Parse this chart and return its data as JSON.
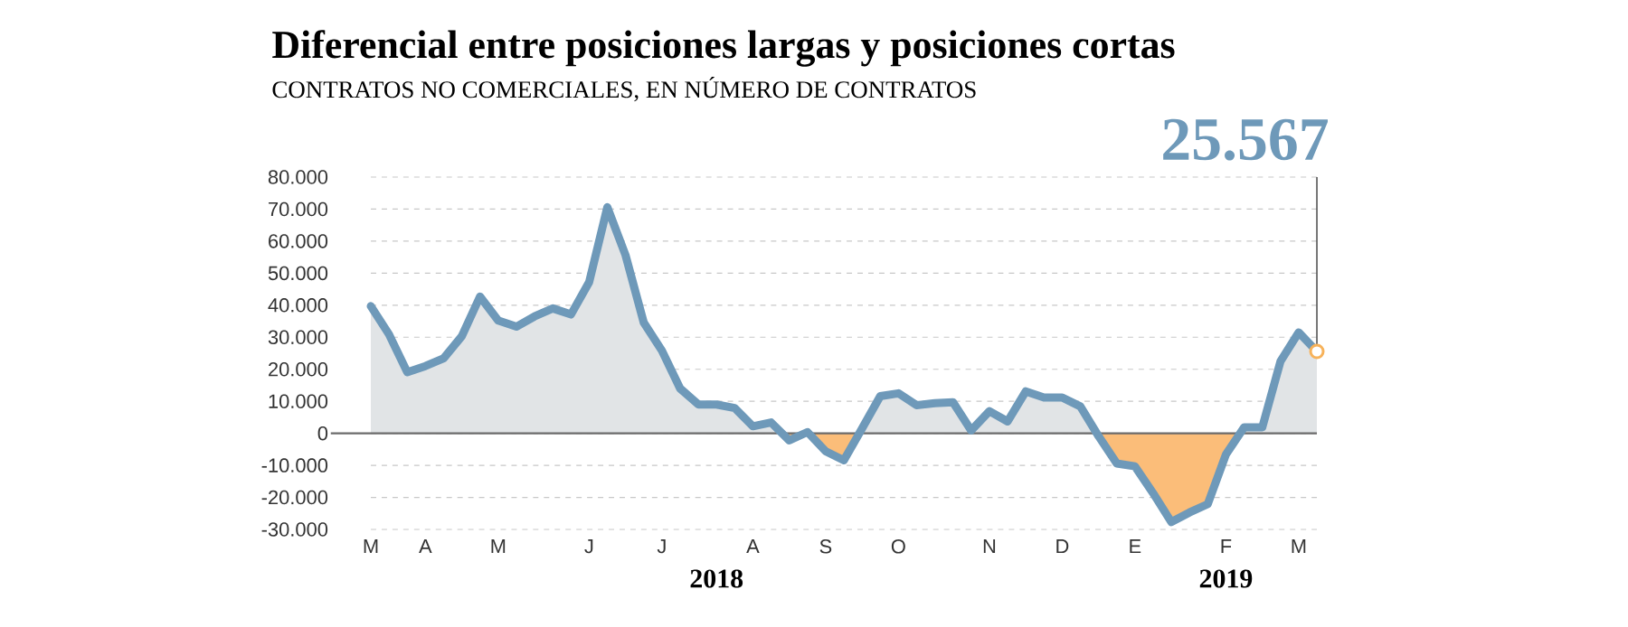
{
  "chart_data": {
    "type": "area",
    "title": "Diferencial entre posiciones largas y posiciones cortas",
    "subtitle": "CONTRATOS NO COMERCIALES, EN NÚMERO DE CONTRATOS",
    "categories": [
      "M",
      null,
      null,
      "A",
      null,
      null,
      null,
      "M",
      null,
      null,
      null,
      null,
      "J",
      null,
      null,
      null,
      "J",
      null,
      null,
      null,
      null,
      "A",
      null,
      null,
      null,
      "S",
      null,
      null,
      null,
      "O",
      null,
      null,
      null,
      null,
      "N",
      null,
      null,
      null,
      "D",
      null,
      null,
      null,
      "E",
      null,
      null,
      null,
      null,
      "F",
      null,
      null,
      null,
      "M",
      null
    ],
    "series": [
      {
        "color": "#6e99b9",
        "values": [
          39700,
          30900,
          19100,
          21000,
          23400,
          30300,
          42700,
          35200,
          33300,
          36500,
          39000,
          37100,
          47200,
          70600,
          55600,
          34600,
          25800,
          14000,
          9000,
          9000,
          7900,
          2200,
          3400,
          -2200,
          400,
          -5600,
          -8400,
          1500,
          11600,
          12500,
          8800,
          9400,
          9700,
          900,
          6900,
          3700,
          13100,
          11200,
          11200,
          8400,
          -900,
          -9400,
          -10300,
          -18700,
          -27700,
          -24700,
          -22100,
          -6600,
          1900,
          1900,
          22500,
          31500,
          25567
        ]
      }
    ],
    "ylim": [
      -30000,
      80000
    ],
    "yticks": [
      {
        "value": -30000,
        "label": "-30.000"
      },
      {
        "value": -20000,
        "label": "-20.000"
      },
      {
        "value": -10000,
        "label": "-10.000"
      },
      0,
      {
        "value": 10000,
        "label": "10.000"
      },
      {
        "value": 20000,
        "label": "20.000"
      },
      {
        "value": 30000,
        "label": "30.000"
      },
      {
        "value": 40000,
        "label": "40.000"
      },
      {
        "value": 50000,
        "label": "50.000"
      },
      {
        "value": 60000,
        "label": "60.000"
      },
      {
        "value": 70000,
        "label": "70.000"
      },
      {
        "value": 80000,
        "label": "80.000"
      }
    ],
    "grid": "y",
    "annotations": [
      "2018",
      "2019",
      "25.567"
    ]
  }
}
